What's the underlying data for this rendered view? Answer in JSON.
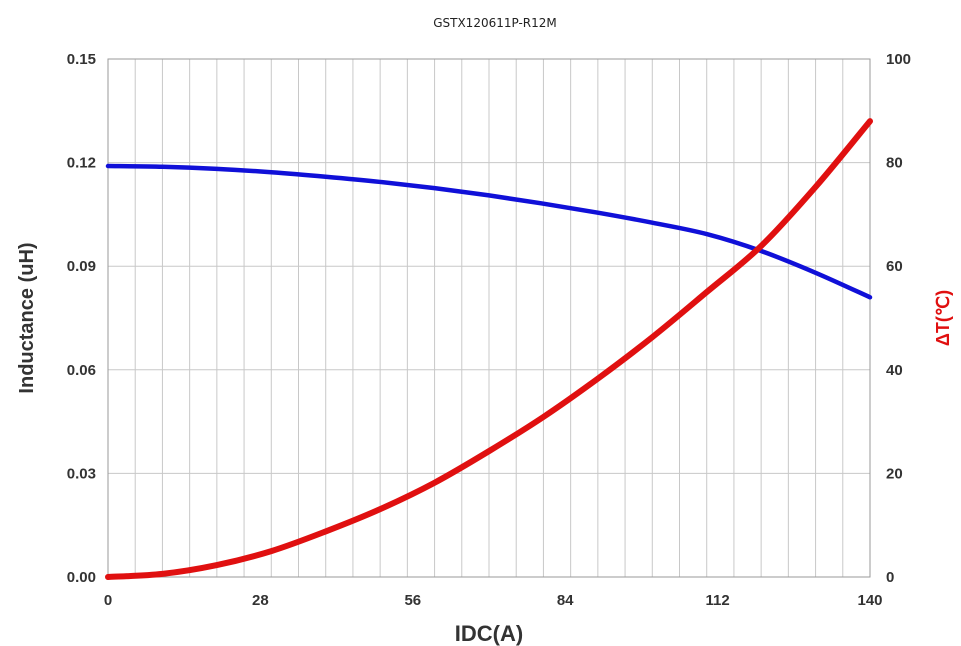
{
  "chart_data": {
    "type": "line",
    "title": "GSTX120611P-R12M",
    "xlabel": "IDC(A)",
    "ylabel": "Inductance (uH)",
    "y2label": "ΔT(℃)",
    "xlim": [
      0,
      140
    ],
    "ylim": [
      0,
      0.15
    ],
    "y2lim": [
      0,
      100
    ],
    "x_ticks": [
      "0",
      "28",
      "56",
      "84",
      "112",
      "140"
    ],
    "y_ticks": [
      "0.00",
      "0.03",
      "0.06",
      "0.09",
      "0.12",
      "0.15"
    ],
    "y2_ticks": [
      "0",
      "20",
      "40",
      "60",
      "80",
      "100"
    ],
    "grid": true,
    "series": [
      {
        "axis": "left",
        "color": "#1010d8",
        "x": [
          0,
          10,
          20,
          30,
          40,
          50,
          60,
          70,
          80,
          90,
          100,
          110,
          120,
          130,
          140
        ],
        "values": [
          0.119,
          0.1188,
          0.1182,
          0.1172,
          0.1159,
          0.1144,
          0.1126,
          0.1105,
          0.1081,
          0.1055,
          0.1026,
          0.0993,
          0.0944,
          0.0881,
          0.081
        ]
      },
      {
        "axis": "right",
        "color": "#e01010",
        "x": [
          0,
          10,
          20,
          30,
          40,
          50,
          60,
          70,
          80,
          90,
          100,
          110,
          120,
          130,
          140
        ],
        "values": [
          0,
          0.6,
          2.3,
          5,
          8.8,
          13.1,
          18.2,
          24.3,
          30.9,
          38.3,
          46.3,
          55,
          63.9,
          75.3,
          88
        ]
      }
    ]
  }
}
